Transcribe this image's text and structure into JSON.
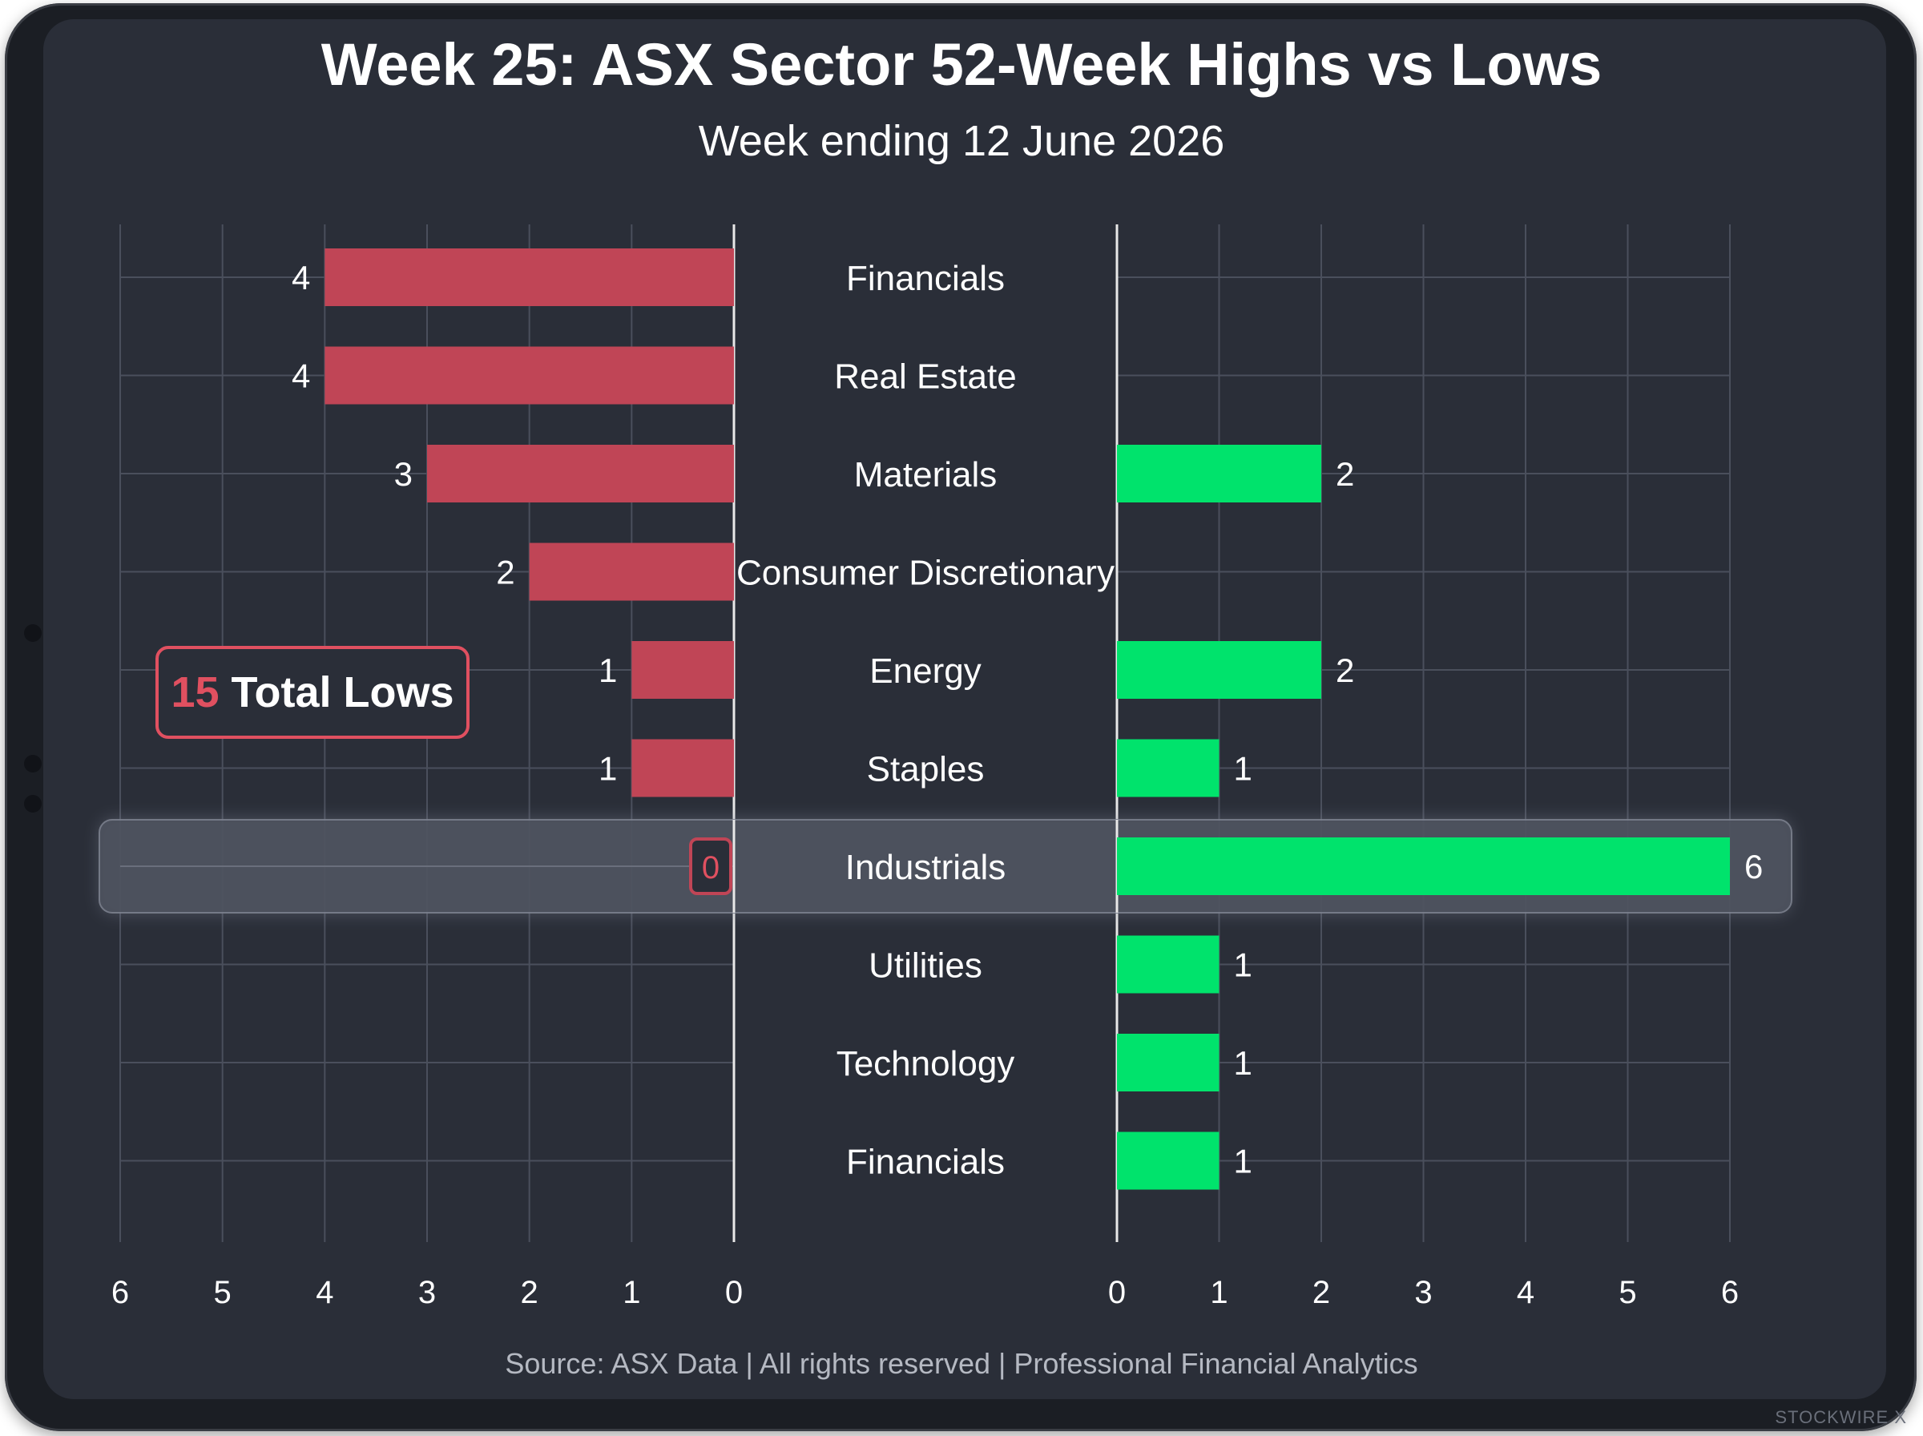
{
  "colors": {
    "background": "#2a2e38",
    "lows": "#c04556",
    "highs": "#00e36c",
    "text": "#ffffff",
    "grid": "#4a4f5c",
    "highlight": "#4d525e",
    "badge_accent": "#e05060"
  },
  "summary_badge": {
    "number": "15",
    "label": "Total Lows"
  },
  "watermark": "STOCKWIRE X",
  "chart_data": {
    "type": "bar",
    "title": "Week 25: ASX Sector 52-Week Highs vs Lows",
    "subtitle": "Week ending 12 June 2026",
    "categories": [
      "Financials",
      "Real Estate",
      "Materials",
      "Consumer Discretionary",
      "Energy",
      "Staples",
      "Industrials",
      "Utilities",
      "Technology",
      "Financials"
    ],
    "series": [
      {
        "values": [
          4,
          4,
          3,
          2,
          1,
          1,
          0,
          0,
          0,
          0
        ]
      },
      {
        "values": [
          0,
          0,
          2,
          0,
          2,
          1,
          6,
          1,
          1,
          1
        ]
      }
    ],
    "lows_data_labels": [
      "4",
      "4",
      "3",
      "2",
      "1",
      "1",
      "0",
      "",
      "",
      ""
    ],
    "highs_data_labels": [
      "",
      "",
      "2",
      "",
      "2",
      "1",
      "6",
      "1",
      "1",
      "1"
    ],
    "left_xlim": [
      6,
      0
    ],
    "right_xlim": [
      0,
      6
    ],
    "left_ticks": [
      "6",
      "5",
      "4",
      "3",
      "2",
      "1",
      "0"
    ],
    "right_ticks": [
      "0",
      "1",
      "2",
      "3",
      "4",
      "5",
      "6"
    ],
    "highlighted_category": "Industrials",
    "grid": true,
    "source": "Source: ASX Data | All rights reserved | Professional Financial Analytics"
  }
}
